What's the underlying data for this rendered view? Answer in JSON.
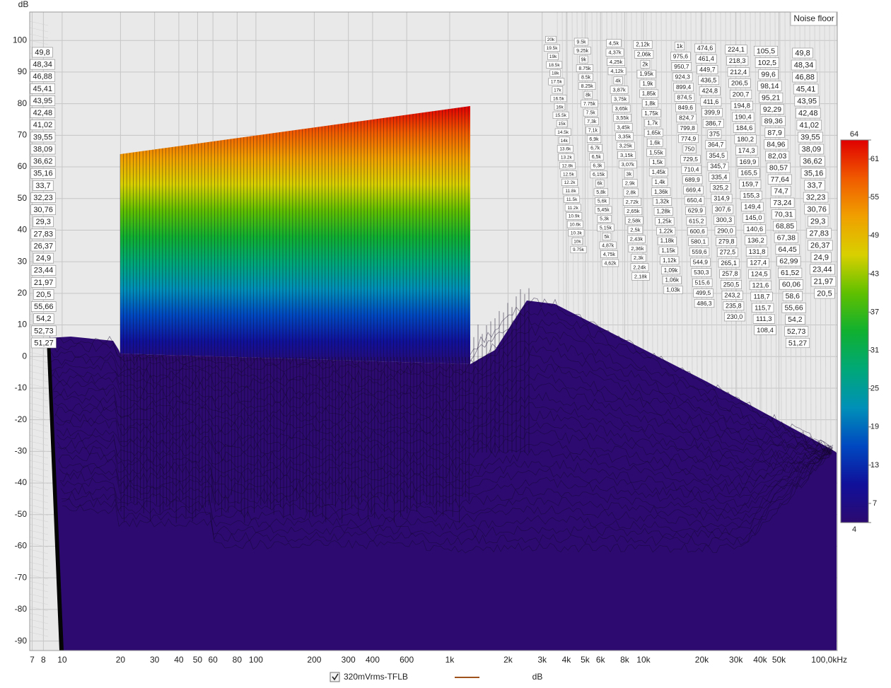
{
  "chart_data": {
    "type": "waterfall",
    "y_label": "dB",
    "ylim": [
      -93,
      109
    ],
    "yticks": [
      -90,
      -80,
      -70,
      -60,
      -50,
      -40,
      -30,
      -20,
      -10,
      0,
      10,
      20,
      30,
      40,
      50,
      60,
      70,
      80,
      90,
      100
    ],
    "log_x": true,
    "xlim": [
      6.8,
      100000
    ],
    "xticks": [
      7,
      8,
      10,
      20,
      30,
      40,
      50,
      60,
      80,
      100,
      200,
      300,
      400,
      600,
      {
        "value": 1000,
        "label": "1k"
      },
      {
        "value": 2000,
        "label": "2k"
      },
      {
        "value": 3000,
        "label": "3k"
      },
      {
        "value": 4000,
        "label": "4k"
      },
      {
        "value": 5000,
        "label": "5k"
      },
      {
        "value": 6000,
        "label": "6k"
      },
      {
        "value": 8000,
        "label": "8k"
      },
      {
        "value": 10000,
        "label": "10k"
      },
      {
        "value": 20000,
        "label": "20k"
      },
      {
        "value": 30000,
        "label": "30k"
      },
      {
        "value": 40000,
        "label": "40k"
      },
      {
        "value": 50000,
        "label": "50k"
      },
      {
        "value": 100000,
        "label": "100,0kHz"
      }
    ],
    "grid": true,
    "noise_floor_label": "Noise floor",
    "colorbar": {
      "lim": [
        4,
        64
      ],
      "ticks": [
        4,
        7,
        13,
        19,
        25,
        31,
        37,
        43,
        49,
        55,
        61,
        64
      ],
      "colors": [
        "#2c0a70",
        "#10109a",
        "#0048c0",
        "#0090b8",
        "#00a878",
        "#10b030",
        "#60c000",
        "#d8d000",
        "#f0a000",
        "#f05a00",
        "#e00000"
      ]
    },
    "series": [
      {
        "name": "320mVrms-TFLB",
        "color": "#a0521d",
        "unit": "dB"
      }
    ],
    "slice_labels": {
      "columns": [
        [
          "20k",
          "19.5k",
          "19k",
          "18.5k",
          "18k",
          "17.5k",
          "17k",
          "16.5k",
          "16k",
          "15.5k",
          "15k",
          "14.5k",
          "14k",
          "13.6k",
          "13.2k",
          "12.8k",
          "12.5k",
          "12.2k",
          "11.8k",
          "11.5k",
          "11.2k",
          "10.9k",
          "10.6k",
          "10.3k",
          "10k",
          "9.75k"
        ],
        [
          "9.5k",
          "9.25k",
          "9k",
          "8.75k",
          "8.5k",
          "8.25k",
          "8k",
          "7.75k",
          "7.5k",
          "7,3k",
          "7,1k",
          "6,9k",
          "6,7k",
          "6,5k",
          "6,3k",
          "6,15k",
          "6k",
          "5,8k",
          "5,6k",
          "5,45k",
          "5,3k",
          "5,15k",
          "5k",
          "4,87k",
          "4,75k",
          "4,62k"
        ],
        [
          "4,5k",
          "4,37k",
          "4,25k",
          "4,12k",
          "4k",
          "3,87k",
          "3,75k",
          "3,65k",
          "3,55k",
          "3,45k",
          "3,35k",
          "3,25k",
          "3,15k",
          "3,07k",
          "3k",
          "2,9k",
          "2,8k",
          "2,72k",
          "2,65k",
          "2,58k",
          "2,5k",
          "2,43k",
          "2,36k",
          "2,3k",
          "2,24k",
          "2,18k"
        ],
        [
          "2,12k",
          "2,06k",
          "2k",
          "1,95k",
          "1,9k",
          "1,85k",
          "1,8k",
          "1,75k",
          "1,7k",
          "1,65k",
          "1,6k",
          "1,55k",
          "1,5k",
          "1,45k",
          "1,4k",
          "1,36k",
          "1,32k",
          "1,28k",
          "1,25k",
          "1,22k",
          "1,18k",
          "1,15k",
          "1,12k",
          "1,09k",
          "1,06k",
          "1,03k"
        ],
        [
          "1k",
          "975,6",
          "950,7",
          "924,3",
          "899,4",
          "874,5",
          "849,6",
          "824,7",
          "799,8",
          "774,9",
          "750",
          "729,5",
          "710,4",
          "689,9",
          "669,4",
          "650,4",
          "629,9",
          "615,2",
          "600,6",
          "580,1",
          "559,6",
          "544,9",
          "530,3",
          "515,6",
          "499,5",
          "486,3"
        ],
        [
          "474,6",
          "461,4",
          "449,7",
          "436,5",
          "424,8",
          "411,6",
          "399,9",
          "386,7",
          "375",
          "364,7",
          "354,5",
          "345,7",
          "335,4",
          "325,2",
          "314,9",
          "307,6",
          "300,3",
          "290,0",
          "279,8",
          "272,5",
          "265,1",
          "257,8",
          "250,5",
          "243,2",
          "235,8",
          "230,0"
        ],
        [
          "224,1",
          "218,3",
          "212,4",
          "206,5",
          "200,7",
          "194,8",
          "190,4",
          "184,6",
          "180,2",
          "174,3",
          "169,9",
          "165,5",
          "159,7",
          "155,3",
          "149,4",
          "145,0",
          "140,6",
          "136,2",
          "131,8",
          "127,4",
          "124,5",
          "121,6",
          "118,7",
          "115,7",
          "111,3",
          "108,4"
        ],
        [
          "105,5",
          "102,5",
          "99,6",
          "98,14",
          "95,21",
          "92,29",
          "89,36",
          "87,9",
          "84,96",
          "82,03",
          "80,57",
          "77,64",
          "74,7",
          "73,24",
          "70,31",
          "68,85",
          "67,38",
          "64,45",
          "62,99",
          "61,52",
          "60,06",
          "58,6",
          "55,66",
          "54,2",
          "52,73",
          "51,27"
        ],
        [
          "49,8",
          "48,34",
          "46,88",
          "45,41",
          "43,95",
          "42,48",
          "41,02",
          "39,55",
          "38,09",
          "36,62",
          "35,16",
          "33,7",
          "32,23",
          "30,76",
          "29,3",
          "27,83",
          "26,37",
          "24,9",
          "23,44",
          "21,97",
          "20,5"
        ]
      ],
      "left": [
        "49,8",
        "48,34",
        "46,88",
        "45,41",
        "43,95",
        "42,48",
        "41,02",
        "39,55",
        "38,09",
        "36,62",
        "35,16",
        "33,7",
        "32,23",
        "30,76",
        "29,3",
        "27,83",
        "26,37",
        "24,9",
        "23,44",
        "21,97",
        "20,5",
        "55,66",
        "54,2",
        "52,73",
        "51,27"
      ]
    }
  }
}
